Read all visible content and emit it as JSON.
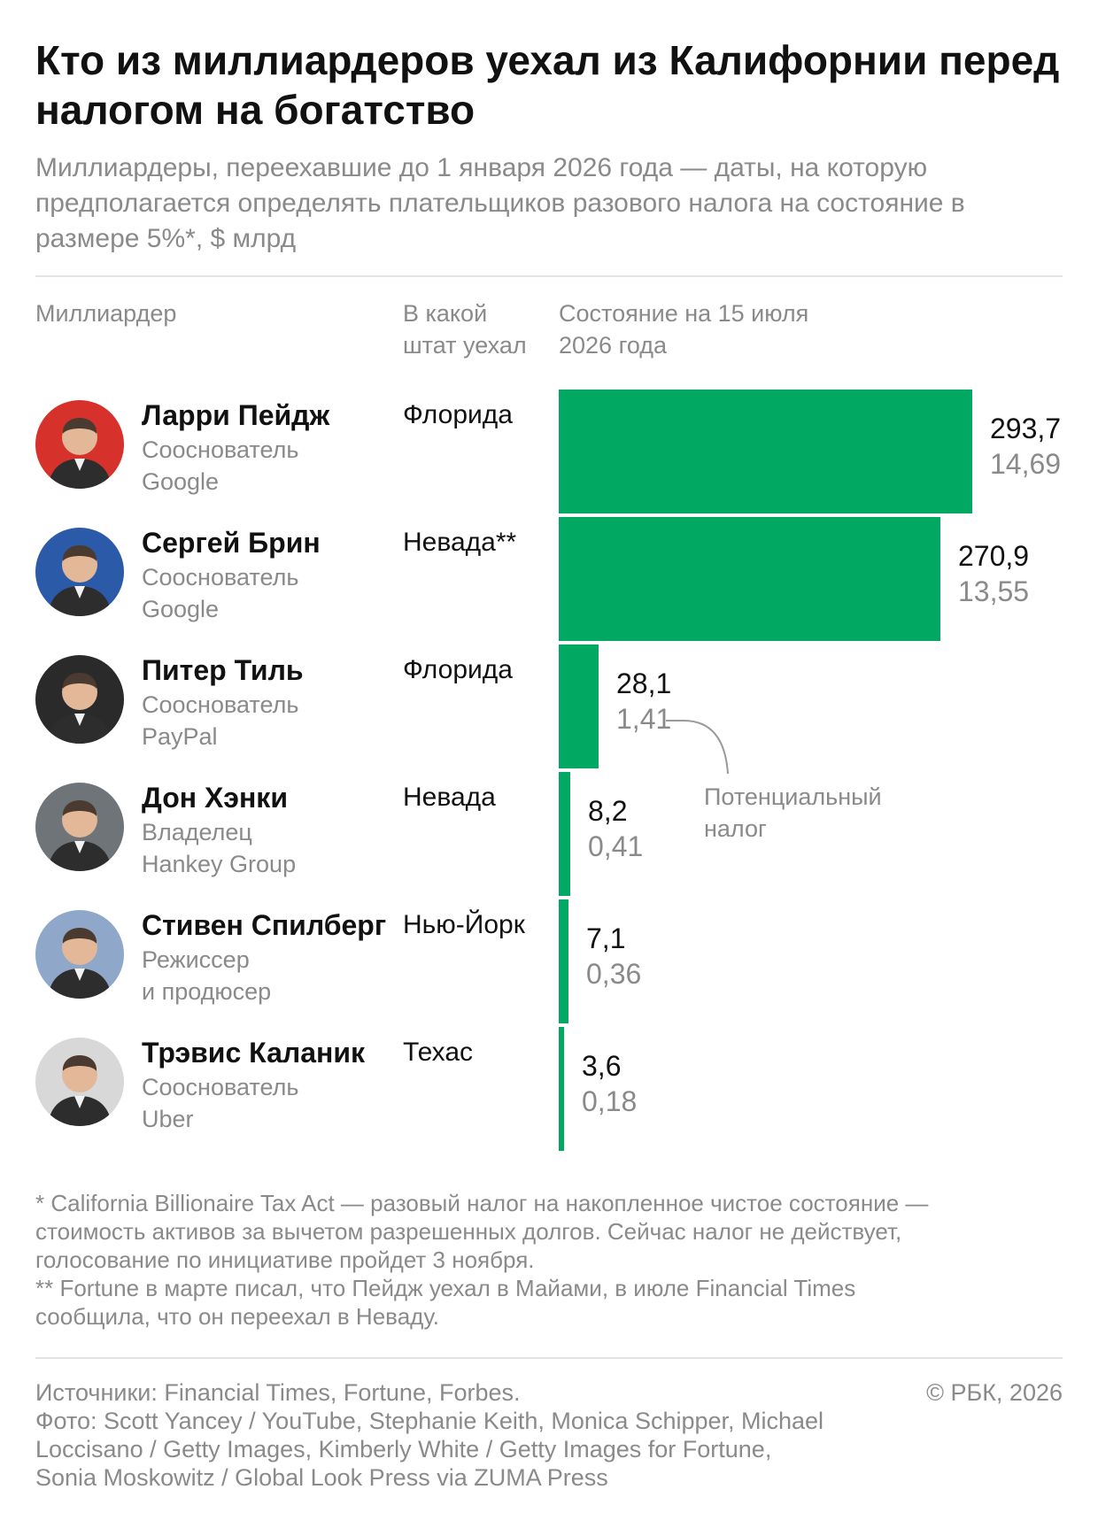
{
  "title": "Кто из миллиардеров уехал из Калифорнии перед налогом на богатство",
  "subtitle": "Миллиардеры, переехавшие до 1 января 2026 года — даты, на которую предполагается определять плательщиков разового налога на состояние в размере 5%*, $ млрд",
  "columns": {
    "name": "Миллиардер",
    "state_line1": "В какой",
    "state_line2": "штат уехал",
    "wealth_line1": "Состояние на 15 июля",
    "wealth_line2": "2026 года"
  },
  "colors": {
    "bar": "#00a862",
    "muted": "#8a8a8a",
    "text": "#111111"
  },
  "chart_data": {
    "type": "bar",
    "orientation": "horizontal",
    "categories": [
      "Ларри Пейдж",
      "Сергей Брин",
      "Питер Тиль",
      "Дон Хэнки",
      "Стивен Спилберг",
      "Трэвис Каланик"
    ],
    "series": [
      {
        "values": [
          293.7,
          270.9,
          28.1,
          8.2,
          7.1,
          3.6
        ]
      },
      {
        "name": "Потенциальный налог",
        "values": [
          14.69,
          13.55,
          1.41,
          0.41,
          0.36,
          0.18
        ]
      }
    ],
    "xlim": [
      0,
      293.7
    ],
    "grid": false
  },
  "rows": [
    {
      "name": "Ларри Пейдж",
      "role1": "Сооснователь",
      "role2": "Google",
      "state": "Флорида",
      "value_label": "293,7",
      "tax_label": "14,69",
      "avatar_icon": "person-photo-icon",
      "avatar_bg": "#d6322b"
    },
    {
      "name": "Сергей Брин",
      "role1": "Сооснователь",
      "role2": "Google",
      "state": "Невада**",
      "value_label": "270,9",
      "tax_label": "13,55",
      "avatar_icon": "person-photo-icon",
      "avatar_bg": "#2b5aa8"
    },
    {
      "name": "Питер Тиль",
      "role1": "Сооснователь",
      "role2": "PayPal",
      "state": "Флорида",
      "value_label": "28,1",
      "tax_label": "1,41",
      "avatar_icon": "person-photo-icon",
      "avatar_bg": "#2a2a2a"
    },
    {
      "name": "Дон Хэнки",
      "role1": "Владелец",
      "role2": "Hankey Group",
      "state": "Невада",
      "value_label": "8,2",
      "tax_label": "0,41",
      "avatar_icon": "person-photo-icon",
      "avatar_bg": "#6e7478"
    },
    {
      "name": "Стивен Спилберг",
      "role1": "Режиссер",
      "role2": "и продюсер",
      "state": "Нью-Йорк",
      "value_label": "7,1",
      "tax_label": "0,36",
      "avatar_icon": "person-photo-icon",
      "avatar_bg": "#8fa7c9"
    },
    {
      "name": "Трэвис Каланик",
      "role1": "Сооснователь",
      "role2": "Uber",
      "state": "Техас",
      "value_label": "3,6",
      "tax_label": "0,18",
      "avatar_icon": "person-photo-icon",
      "avatar_bg": "#d8d8d8"
    }
  ],
  "annotation": {
    "line1": "Потенциальный",
    "line2": "налог"
  },
  "footnotes": [
    "* California Billionaire Tax Act — разовый налог на накопленное чистое состояние —",
    "стоимость активов за вычетом разрешенных долгов. Сейчас налог не действует,",
    "голосование по инициативе пройдет 3 ноября.",
    "** Fortune в марте писал, что Пейдж уехал в Майами, в июле Financial Times",
    "сообщила, что он переехал в Неваду."
  ],
  "sources": [
    "Источники: Financial Times, Fortune, Forbes.",
    "Фото: Scott Yancey / YouTube, Stephanie Keith, Monica Schipper, Michael",
    "Loccisano / Getty Images, Kimberly White / Getty Images for Fortune,",
    "Sonia Moskowitz / Global Look Press via ZUMA Press"
  ],
  "copyright": "© РБК, 2026"
}
